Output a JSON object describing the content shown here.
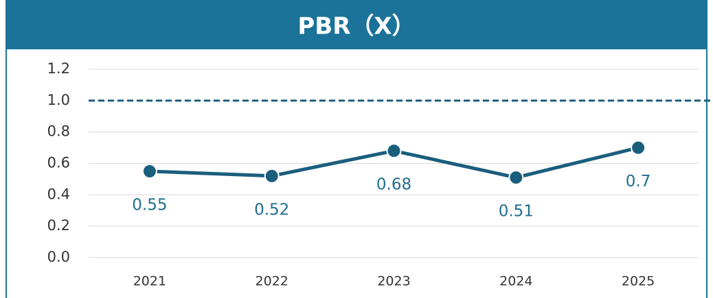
{
  "chart_data": {
    "type": "line",
    "title": "PBR（X）",
    "categories": [
      "2021",
      "2022",
      "2023",
      "2024",
      "2025"
    ],
    "series": [
      {
        "name": "PBR",
        "color": "#1a5e7d",
        "values": [
          0.55,
          0.52,
          0.68,
          0.51,
          0.7
        ]
      }
    ],
    "ylim": [
      0,
      1.2
    ],
    "yticks": [
      {
        "value": 0,
        "label": "0.0"
      },
      0.2,
      0.4,
      0.6,
      0.8,
      {
        "value": 1,
        "label": "1.0"
      },
      1.2
    ],
    "reference_line": 1,
    "grid": true
  }
}
